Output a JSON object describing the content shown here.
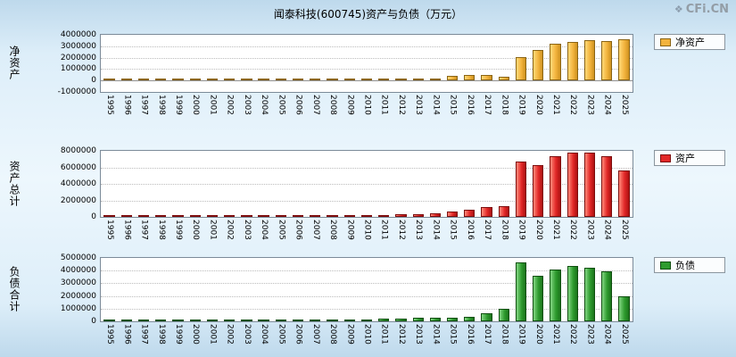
{
  "title": "闻泰科技(600745)资产与负债（万元）",
  "logo": "CFi.CN",
  "years": [
    "1995",
    "1996",
    "1997",
    "1998",
    "1999",
    "2000",
    "2001",
    "2002",
    "2003",
    "2004",
    "2005",
    "2006",
    "2007",
    "2008",
    "2009",
    "2010",
    "2011",
    "2012",
    "2013",
    "2014",
    "2015",
    "2016",
    "2017",
    "2018",
    "2019",
    "2020",
    "2021",
    "2022",
    "2023",
    "2024",
    "2025"
  ],
  "chart_data": [
    {
      "type": "bar",
      "ylabel": "净资产",
      "legend_label": "净资产",
      "ylim": [
        -1000000,
        4000000
      ],
      "yticks": [
        4000000,
        3000000,
        2000000,
        1000000,
        0,
        -1000000
      ],
      "grid": true,
      "legend_position": "right-top",
      "values": [
        15000,
        18000,
        25000,
        30000,
        35000,
        45000,
        50000,
        52000,
        55000,
        56000,
        50000,
        45000,
        48000,
        42000,
        45000,
        52000,
        60000,
        65000,
        80000,
        180000,
        420000,
        520000,
        480000,
        300000,
        2050000,
        2700000,
        3200000,
        3400000,
        3500000,
        3480000,
        3600000
      ],
      "colors": {
        "base": "#F2B33D",
        "light": "#FFD978",
        "dark": "#CE9220",
        "border": "#8A6414"
      }
    },
    {
      "type": "bar",
      "ylabel": "资产总计",
      "legend_label": "资产",
      "ylim": [
        0,
        8000000
      ],
      "yticks": [
        8000000,
        6000000,
        4000000,
        2000000,
        0
      ],
      "grid": true,
      "legend_position": "right-top",
      "values": [
        30000,
        35000,
        45000,
        55000,
        65000,
        80000,
        90000,
        95000,
        100000,
        105000,
        110000,
        115000,
        125000,
        140000,
        160000,
        200000,
        240000,
        280000,
        330000,
        450000,
        700000,
        900000,
        1150000,
        1300000,
        6700000,
        6300000,
        7300000,
        7800000,
        7750000,
        7400000,
        5600000
      ],
      "colors": {
        "base": "#E22828",
        "light": "#FF8A7A",
        "dark": "#AC1111",
        "border": "#7D0D0D"
      }
    },
    {
      "type": "bar",
      "ylabel": "负债合计",
      "legend_label": "负债",
      "ylim": [
        0,
        5000000
      ],
      "yticks": [
        5000000,
        4000000,
        3000000,
        2000000,
        1000000,
        0
      ],
      "grid": true,
      "legend_position": "right-top",
      "values": [
        15000,
        17000,
        20000,
        25000,
        30000,
        35000,
        40000,
        43000,
        45000,
        49000,
        60000,
        70000,
        77000,
        98000,
        115000,
        148000,
        180000,
        215000,
        250000,
        270000,
        280000,
        380000,
        670000,
        1000000,
        4650000,
        3600000,
        4100000,
        4400000,
        4250000,
        3920000,
        2000000
      ],
      "colors": {
        "base": "#2E9B2E",
        "light": "#83D683",
        "dark": "#1B741B",
        "border": "#0F4F0F"
      }
    }
  ]
}
